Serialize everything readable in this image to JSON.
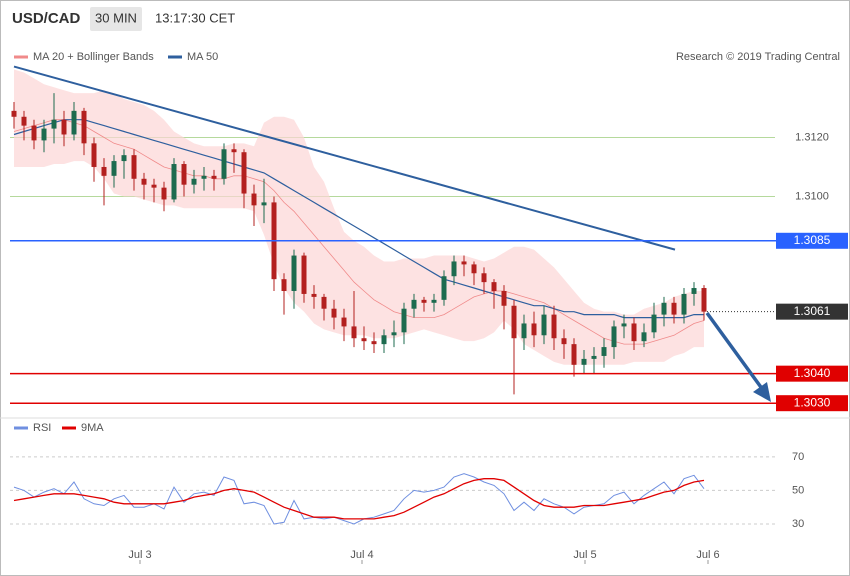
{
  "chart_data": {
    "type": "candlestick",
    "symbol": "USD/CAD",
    "interval": "30 MIN",
    "time": "13:17:30 CET",
    "credit": "Research © 2019 Trading Central",
    "up_color": "#1d6b4f",
    "down_color": "#b3201f",
    "xlim": [
      -0.4,
      76.1
    ],
    "xticks": [
      {
        "value": 12.6,
        "label": "Jul 3"
      },
      {
        "value": 34.8,
        "label": "Jul 4"
      },
      {
        "value": 57.1,
        "label": "Jul 5"
      },
      {
        "value": 69.4,
        "label": "Jul 6"
      }
    ],
    "ylim": [
      1.3026,
      1.3153
    ],
    "yticks": [
      {
        "value": 1.312,
        "label": "1.3120"
      },
      {
        "value": 1.31,
        "label": "1.3100"
      }
    ],
    "grid_color": "#b5d99c",
    "open": [
      1.3129,
      1.3127,
      1.3124,
      1.3119,
      1.3123,
      1.3126,
      1.3121,
      1.3129,
      1.3118,
      1.311,
      1.3107,
      1.3112,
      1.3114,
      1.3106,
      1.3104,
      1.3103,
      1.3099,
      1.3111,
      1.3104,
      1.3106,
      1.3107,
      1.3106,
      1.3116,
      1.3115,
      1.3101,
      1.3097,
      1.3098,
      1.3072,
      1.3068,
      1.308,
      1.3067,
      1.3066,
      1.3062,
      1.3059,
      1.3056,
      1.3052,
      1.3051,
      1.305,
      1.3053,
      1.3054,
      1.3062,
      1.3065,
      1.3064,
      1.3065,
      1.3073,
      1.3078,
      1.3077,
      1.3074,
      1.3071,
      1.3068,
      1.3063,
      1.3052,
      1.3057,
      1.3053,
      1.306,
      1.3052,
      1.305,
      1.3043,
      1.3045,
      1.3046,
      1.3049,
      1.3056,
      1.3057,
      1.3051,
      1.3054,
      1.306,
      1.3064,
      1.306,
      1.3067,
      1.3069
    ],
    "close": [
      1.3127,
      1.3124,
      1.3119,
      1.3123,
      1.3126,
      1.3121,
      1.3129,
      1.3118,
      1.311,
      1.3107,
      1.3112,
      1.3114,
      1.3106,
      1.3104,
      1.3103,
      1.3099,
      1.3111,
      1.3104,
      1.3106,
      1.3107,
      1.3106,
      1.3116,
      1.3115,
      1.3101,
      1.3097,
      1.3098,
      1.3072,
      1.3068,
      1.308,
      1.3067,
      1.3066,
      1.3062,
      1.3059,
      1.3056,
      1.3052,
      1.3051,
      1.305,
      1.3053,
      1.3054,
      1.3062,
      1.3065,
      1.3064,
      1.3065,
      1.3073,
      1.3078,
      1.3077,
      1.3074,
      1.3071,
      1.3068,
      1.3063,
      1.3052,
      1.3057,
      1.3053,
      1.306,
      1.3052,
      1.305,
      1.3043,
      1.3045,
      1.3046,
      1.3049,
      1.3056,
      1.3057,
      1.3051,
      1.3054,
      1.306,
      1.3064,
      1.306,
      1.3067,
      1.3069,
      1.3061
    ],
    "high": [
      1.3132,
      1.3129,
      1.3126,
      1.3126,
      1.3135,
      1.3129,
      1.3132,
      1.313,
      1.312,
      1.3113,
      1.3114,
      1.3116,
      1.3116,
      1.3108,
      1.3106,
      1.3105,
      1.3113,
      1.3112,
      1.3109,
      1.311,
      1.3109,
      1.3118,
      1.3118,
      1.3116,
      1.3104,
      1.3106,
      1.31,
      1.3074,
      1.3082,
      1.3081,
      1.307,
      1.3067,
      1.3065,
      1.3062,
      1.3068,
      1.3056,
      1.3054,
      1.3055,
      1.3058,
      1.3064,
      1.3067,
      1.3066,
      1.3067,
      1.3075,
      1.308,
      1.308,
      1.3078,
      1.3076,
      1.3072,
      1.307,
      1.3065,
      1.306,
      1.3061,
      1.3063,
      1.3063,
      1.3055,
      1.3052,
      1.3048,
      1.3049,
      1.3052,
      1.3058,
      1.306,
      1.3059,
      1.3057,
      1.3064,
      1.3066,
      1.3066,
      1.3069,
      1.3071,
      1.307
    ],
    "low": [
      1.3123,
      1.3119,
      1.3116,
      1.3115,
      1.3118,
      1.3117,
      1.3119,
      1.3114,
      1.3105,
      1.3097,
      1.3103,
      1.3106,
      1.3102,
      1.3099,
      1.3098,
      1.3095,
      1.3098,
      1.31,
      1.3101,
      1.3102,
      1.3102,
      1.3104,
      1.3108,
      1.3096,
      1.309,
      1.3091,
      1.3068,
      1.306,
      1.3062,
      1.3064,
      1.3062,
      1.3058,
      1.3055,
      1.3051,
      1.3049,
      1.3048,
      1.3047,
      1.3047,
      1.3049,
      1.305,
      1.3059,
      1.3061,
      1.3061,
      1.3063,
      1.307,
      1.3073,
      1.307,
      1.3067,
      1.3062,
      1.3055,
      1.3033,
      1.3048,
      1.3049,
      1.305,
      1.3048,
      1.3045,
      1.3039,
      1.304,
      1.304,
      1.3042,
      1.3045,
      1.3052,
      1.3048,
      1.3049,
      1.3052,
      1.3056,
      1.3057,
      1.3057,
      1.3063,
      1.3058
    ],
    "overlays": [
      {
        "name": "MA 20 + Bollinger Bands",
        "color": "#f08a8a",
        "band_color": "#fcd6d6",
        "values": [
          1.3122,
          1.3123,
          1.3124,
          1.3125,
          1.3126,
          1.3126,
          1.3125,
          1.3124,
          1.3122,
          1.312,
          1.3118,
          1.3117,
          1.3116,
          1.3114,
          1.3112,
          1.311,
          1.3109,
          1.3108,
          1.3107,
          1.3107,
          1.3106,
          1.3106,
          1.3107,
          1.3107,
          1.3106,
          1.3105,
          1.3102,
          1.3098,
          1.3095,
          1.3091,
          1.3087,
          1.3083,
          1.3079,
          1.3075,
          1.3071,
          1.3068,
          1.3065,
          1.3063,
          1.3061,
          1.306,
          1.3059,
          1.3059,
          1.3059,
          1.306,
          1.3062,
          1.3064,
          1.3066,
          1.3067,
          1.3068,
          1.3068,
          1.3067,
          1.3066,
          1.3065,
          1.3064,
          1.3062,
          1.306,
          1.3058,
          1.3056,
          1.3054,
          1.3052,
          1.3051,
          1.305,
          1.305,
          1.305,
          1.3051,
          1.3052,
          1.3053,
          1.3055,
          1.3057,
          1.3058
        ],
        "upper": [
          1.3143,
          1.3142,
          1.314,
          1.3138,
          1.3137,
          1.3136,
          1.3135,
          1.3135,
          1.3135,
          1.3136,
          1.3135,
          1.3133,
          1.3132,
          1.3131,
          1.3129,
          1.3126,
          1.3122,
          1.312,
          1.3118,
          1.3117,
          1.3117,
          1.3117,
          1.3118,
          1.3118,
          1.3117,
          1.3125,
          1.3127,
          1.3127,
          1.3126,
          1.312,
          1.311,
          1.3105,
          1.3096,
          1.3088,
          1.3085,
          1.3083,
          1.308,
          1.3078,
          1.3078,
          1.3079,
          1.3079,
          1.3079,
          1.308,
          1.308,
          1.308,
          1.308,
          1.3079,
          1.3078,
          1.3079,
          1.3081,
          1.3083,
          1.3083,
          1.3082,
          1.3079,
          1.3076,
          1.3072,
          1.3068,
          1.3064,
          1.3062,
          1.3061,
          1.3061,
          1.306,
          1.306,
          1.3062,
          1.3063,
          1.3064,
          1.3066,
          1.3067,
          1.3068,
          1.3068
        ],
        "lower": [
          1.311,
          1.311,
          1.311,
          1.311,
          1.3111,
          1.3111,
          1.3112,
          1.3112,
          1.311,
          1.3106,
          1.3101,
          1.31,
          1.31,
          1.3099,
          1.3098,
          1.3097,
          1.3097,
          1.3096,
          1.3096,
          1.3096,
          1.3096,
          1.3096,
          1.3096,
          1.3096,
          1.3095,
          1.3087,
          1.3077,
          1.3069,
          1.3064,
          1.3061,
          1.3057,
          1.3055,
          1.3054,
          1.3053,
          1.3053,
          1.3053,
          1.3052,
          1.3052,
          1.3052,
          1.3053,
          1.3054,
          1.3055,
          1.3054,
          1.3053,
          1.3052,
          1.3051,
          1.3051,
          1.3052,
          1.3054,
          1.3058,
          1.3055,
          1.305,
          1.3048,
          1.3046,
          1.3044,
          1.3043,
          1.3043,
          1.3043,
          1.3043,
          1.3043,
          1.3043,
          1.3043,
          1.3044,
          1.3044,
          1.3044,
          1.3044,
          1.3046,
          1.3047,
          1.3049,
          1.3049
        ]
      },
      {
        "name": "MA 50",
        "color": "#2e5f9e",
        "values": [
          1.3121,
          1.3122,
          1.3123,
          1.3124,
          1.3125,
          1.3126,
          1.3126,
          1.3126,
          1.3125,
          1.3124,
          1.3123,
          1.3122,
          1.3121,
          1.312,
          1.3119,
          1.3118,
          1.3117,
          1.3116,
          1.3115,
          1.3114,
          1.3113,
          1.3112,
          1.3111,
          1.311,
          1.3109,
          1.3108,
          1.3106,
          1.3104,
          1.3102,
          1.31,
          1.3098,
          1.3096,
          1.3094,
          1.3092,
          1.309,
          1.3088,
          1.3086,
          1.3084,
          1.3082,
          1.308,
          1.3078,
          1.3076,
          1.3074,
          1.3072,
          1.3071,
          1.307,
          1.3069,
          1.3068,
          1.3067,
          1.3066,
          1.3065,
          1.3064,
          1.3063,
          1.3063,
          1.3062,
          1.3061,
          1.3061,
          1.306,
          1.306,
          1.306,
          1.306,
          1.3059,
          1.3059,
          1.3059,
          1.3059,
          1.3059,
          1.3059,
          1.3059,
          1.306,
          1.306
        ]
      }
    ],
    "trendline": {
      "x": [
        0,
        66.1
      ],
      "values": [
        1.3144,
        1.3082
      ],
      "color": "#2e5f9e"
    },
    "levels": [
      {
        "value": 1.3085,
        "label": "1.3085",
        "color": "#2962ff"
      },
      {
        "value": 1.304,
        "label": "1.3040",
        "color": "#e00000"
      },
      {
        "value": 1.303,
        "label": "1.3030",
        "color": "#e00000"
      }
    ],
    "last": {
      "value": 1.3061,
      "label": "1.3061",
      "color": "#333333"
    },
    "rsi": {
      "ylim": [
        8.5,
        92
      ],
      "yticks": [
        30,
        50,
        70
      ],
      "series": [
        {
          "name": "RSI",
          "color": "#6f8fe0",
          "values": [
            52,
            50,
            46,
            49,
            51,
            48,
            55,
            45,
            42,
            41,
            45,
            47,
            40,
            40,
            42,
            39,
            52,
            43,
            48,
            49,
            47,
            58,
            56,
            42,
            43,
            41,
            30,
            31,
            44,
            33,
            34,
            33,
            34,
            32,
            30,
            33,
            34,
            36,
            38,
            45,
            50,
            49,
            50,
            52,
            58,
            60,
            58,
            55,
            53,
            48,
            38,
            43,
            38,
            45,
            42,
            40,
            36,
            40,
            41,
            42,
            47,
            49,
            42,
            47,
            51,
            55,
            48,
            57,
            59,
            51
          ]
        },
        {
          "name": "9MA",
          "color": "#e00000",
          "values": [
            44,
            45,
            46,
            47,
            48,
            48,
            48,
            47,
            46,
            45,
            43,
            42,
            42,
            42,
            42,
            42,
            43,
            44,
            46,
            47,
            48,
            50,
            51,
            50,
            49,
            46,
            43,
            40,
            38,
            36,
            34,
            34,
            34,
            33,
            33,
            33,
            33,
            34,
            35,
            37,
            40,
            43,
            46,
            48,
            51,
            54,
            56,
            57,
            57,
            56,
            52,
            48,
            44,
            41,
            40,
            40,
            40,
            41,
            41,
            41,
            42,
            43,
            44,
            45,
            47,
            49,
            50,
            53,
            55,
            56
          ]
        }
      ]
    }
  }
}
